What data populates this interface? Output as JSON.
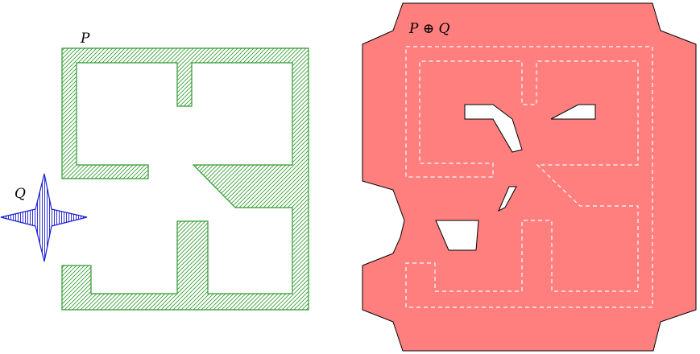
{
  "labels": {
    "p": "P",
    "q": "Q",
    "sum": "P ⊕ Q"
  },
  "colors": {
    "p_hatch": "#2e9a2e",
    "q_hatch": "#1a1ad4",
    "sum_fill": "#ff7f7f",
    "sum_outline": "#000000",
    "dashed_outline": "#ffffff"
  }
}
